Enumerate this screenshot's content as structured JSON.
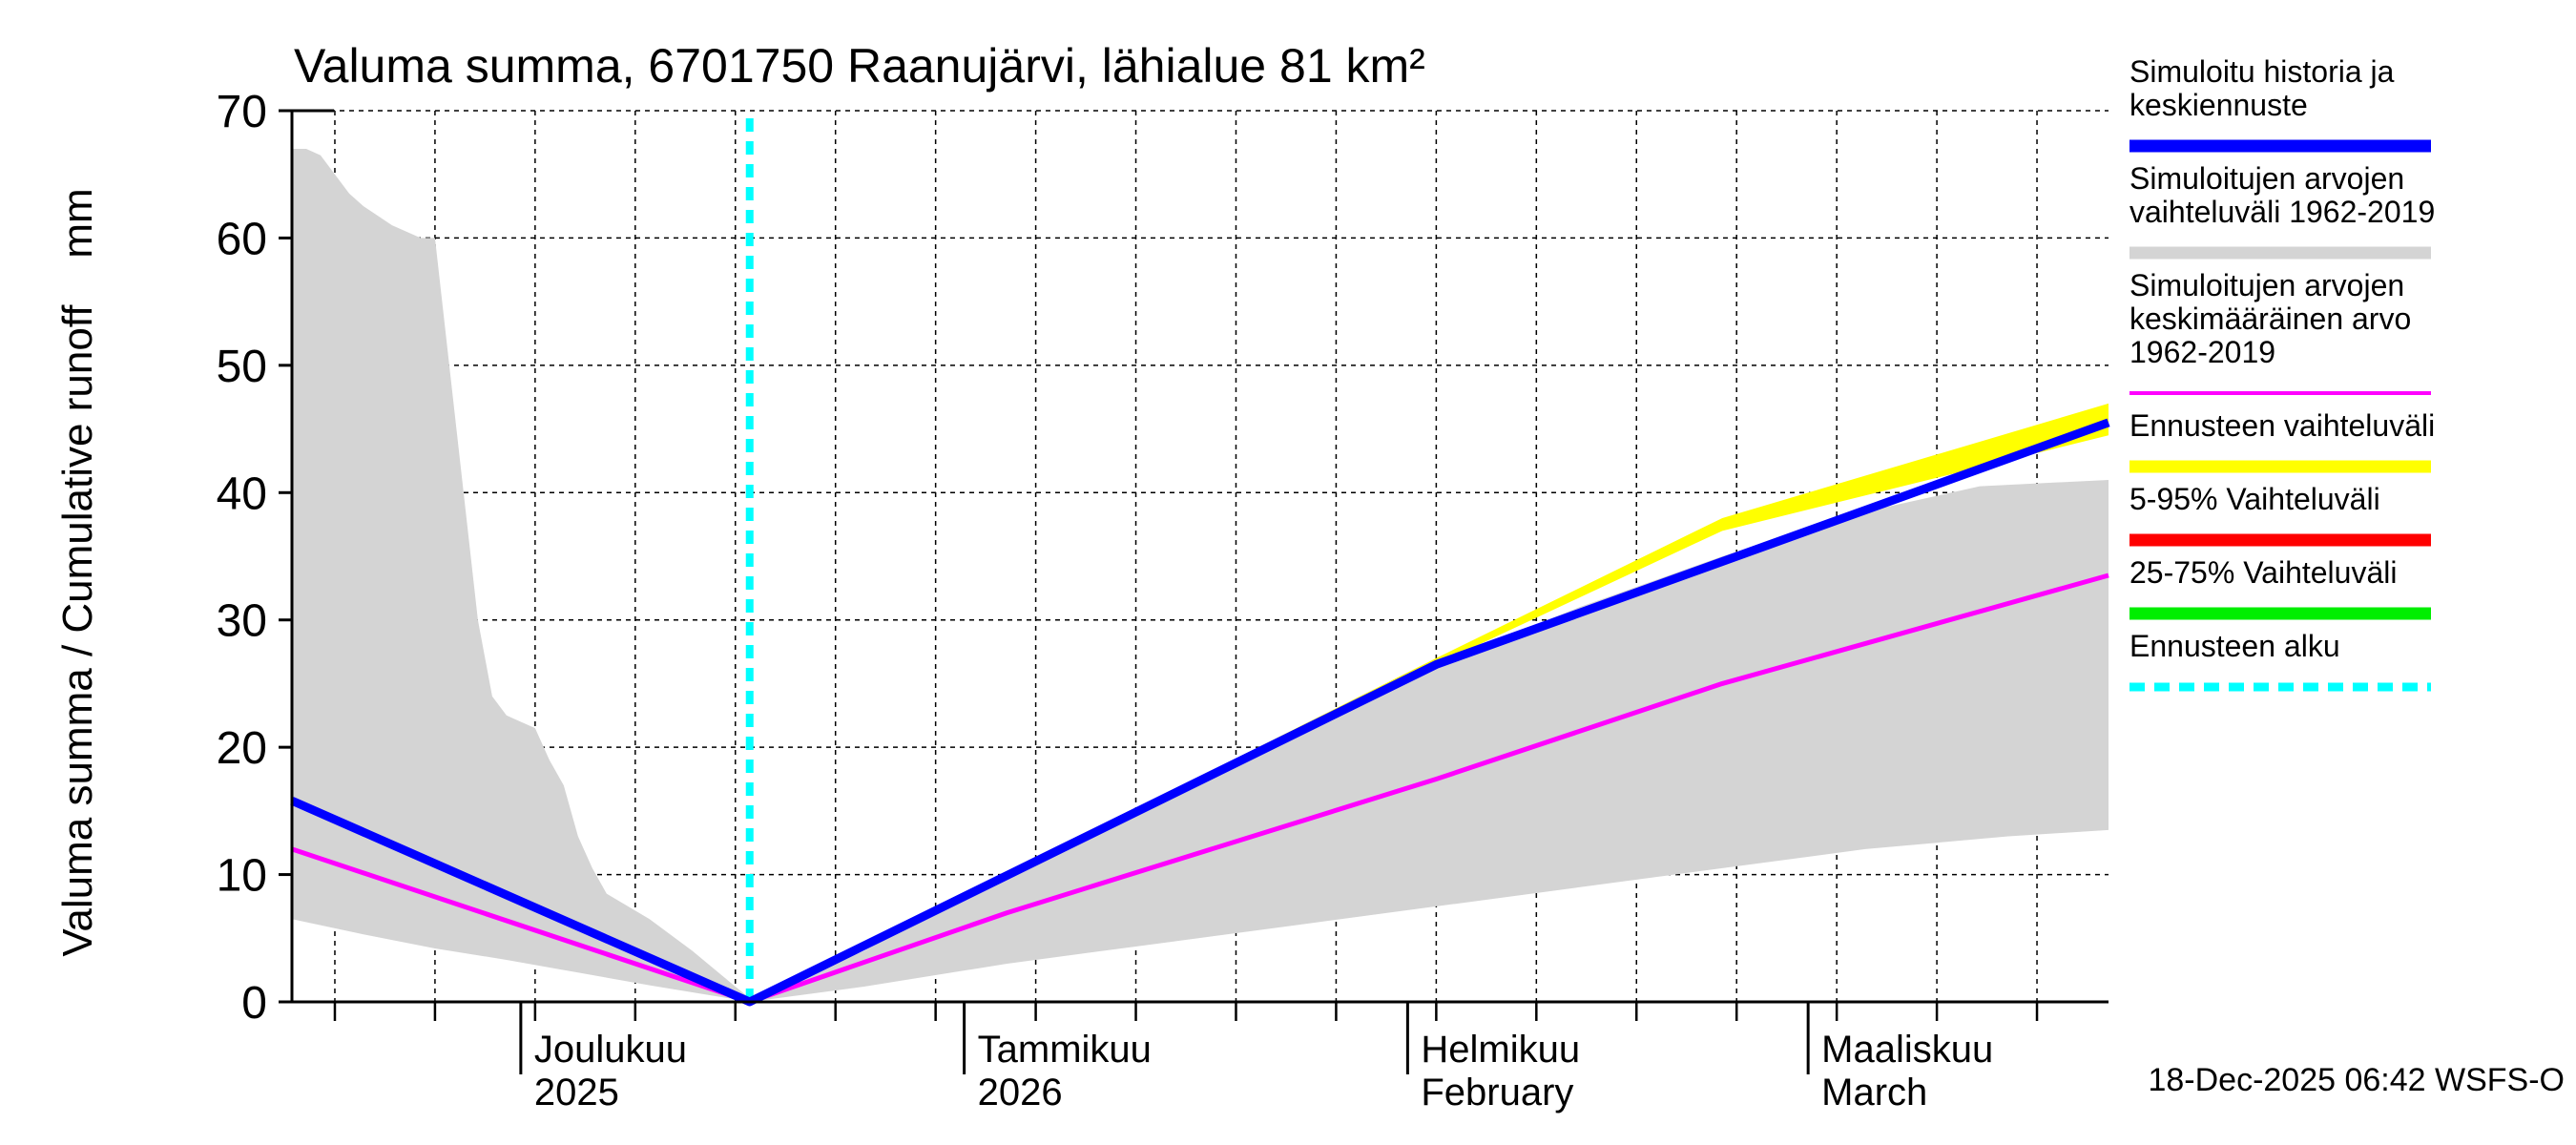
{
  "chart_data": {
    "type": "area",
    "title": "Valuma summa, 6701750 Raanujärvi, lähialue 81 km²",
    "ylabel": "Valuma summa / Cumulative runoff    mm",
    "ylim": [
      0,
      70
    ],
    "yticks": [
      0,
      10,
      20,
      30,
      40,
      50,
      60,
      70
    ],
    "xlim_days": [
      0,
      127
    ],
    "x_unit": "days since 2025-11-15",
    "grid": true,
    "month_labels": [
      {
        "day": 16,
        "line1": "Joulukuu",
        "line2": "2025"
      },
      {
        "day": 47,
        "line1": "Tammikuu",
        "line2": "2026"
      },
      {
        "day": 78,
        "line1": "Helmikuu",
        "line2": "February"
      },
      {
        "day": 106,
        "line1": "Maaliskuu",
        "line2": "March"
      }
    ],
    "month_start_days": [
      16,
      47,
      78,
      106
    ],
    "forecast_start_day": 32,
    "series": [
      {
        "name": "Simuloitujen arvojen vaihteluväli 1962-2019",
        "kind": "band",
        "color": "#d4d4d4",
        "upper": [
          [
            0,
            67
          ],
          [
            1,
            67
          ],
          [
            2,
            66.5
          ],
          [
            3,
            65
          ],
          [
            4,
            63.5
          ],
          [
            5,
            62.5
          ],
          [
            7,
            61
          ],
          [
            9,
            60
          ],
          [
            10,
            60
          ],
          [
            11,
            50
          ],
          [
            12,
            40
          ],
          [
            13,
            30
          ],
          [
            14,
            24
          ],
          [
            15,
            22.5
          ],
          [
            16,
            22
          ],
          [
            17,
            21.5
          ],
          [
            18,
            19
          ],
          [
            19,
            17
          ],
          [
            20,
            13
          ],
          [
            21,
            10.5
          ],
          [
            22,
            8.5
          ],
          [
            25,
            6.5
          ],
          [
            28,
            4
          ],
          [
            31,
            1.2
          ],
          [
            32,
            0.3
          ],
          [
            40,
            4
          ],
          [
            50,
            10
          ],
          [
            60,
            15.5
          ],
          [
            70,
            21
          ],
          [
            80,
            26.5
          ],
          [
            90,
            31
          ],
          [
            100,
            35
          ],
          [
            110,
            38.5
          ],
          [
            118,
            40.5
          ],
          [
            127,
            41
          ]
        ],
        "lower": [
          [
            0,
            6.5
          ],
          [
            5,
            5.3
          ],
          [
            10,
            4.2
          ],
          [
            15,
            3.3
          ],
          [
            20,
            2.3
          ],
          [
            25,
            1.3
          ],
          [
            31,
            0.2
          ],
          [
            32,
            0
          ],
          [
            40,
            1.2
          ],
          [
            50,
            3
          ],
          [
            60,
            4.5
          ],
          [
            70,
            6
          ],
          [
            80,
            7.5
          ],
          [
            90,
            9
          ],
          [
            100,
            10.5
          ],
          [
            110,
            12
          ],
          [
            120,
            13
          ],
          [
            127,
            13.5
          ]
        ]
      },
      {
        "name": "Ennusteen vaihteluväli",
        "kind": "band",
        "color": "#ffff00",
        "upper": [
          [
            32,
            0
          ],
          [
            80,
            27
          ],
          [
            100,
            38
          ],
          [
            127,
            47
          ]
        ],
        "lower": [
          [
            32,
            0
          ],
          [
            80,
            26.5
          ],
          [
            100,
            37
          ],
          [
            127,
            44.5
          ]
        ]
      },
      {
        "name": "Simuloitujen arvojen keskimääräinen arvo 1962-2019",
        "kind": "line",
        "color": "#ff00ff",
        "width": 5,
        "points": [
          [
            0,
            12
          ],
          [
            32,
            0
          ],
          [
            50,
            7
          ],
          [
            70,
            14
          ],
          [
            80,
            17.5
          ],
          [
            100,
            25
          ],
          [
            127,
            33.5
          ]
        ]
      },
      {
        "name": "Simuloitu historia ja keskiennuste",
        "kind": "line",
        "color": "#0000ff",
        "width": 9,
        "points": [
          [
            0,
            15.8
          ],
          [
            32,
            0
          ],
          [
            80,
            26.5
          ],
          [
            127,
            45.5
          ]
        ]
      }
    ],
    "legend": {
      "position": "right",
      "entries": [
        {
          "lines": [
            "Simuloitu historia ja",
            "keskiennuste"
          ],
          "color": "#0000ff",
          "style": "solid"
        },
        {
          "lines": [
            "Simuloitujen arvojen",
            "vaihteluväli 1962-2019"
          ],
          "color": "#d4d4d4",
          "style": "solid"
        },
        {
          "lines": [
            "Simuloitujen arvojen",
            "keskimääräinen arvo",
            "   1962-2019"
          ],
          "color": "#ff00ff",
          "style": "thin"
        },
        {
          "lines": [
            "Ennusteen vaihteluväli"
          ],
          "color": "#ffff00",
          "style": "solid"
        },
        {
          "lines": [
            "5-95% Vaihteluväli"
          ],
          "color": "#ff0000",
          "style": "solid"
        },
        {
          "lines": [
            "25-75% Vaihteluväli"
          ],
          "color": "#00ee00",
          "style": "solid"
        },
        {
          "lines": [
            "Ennusteen alku"
          ],
          "color": "#00ffff",
          "style": "dashed"
        }
      ]
    },
    "footer": "18-Dec-2025 06:42 WSFS-O"
  }
}
